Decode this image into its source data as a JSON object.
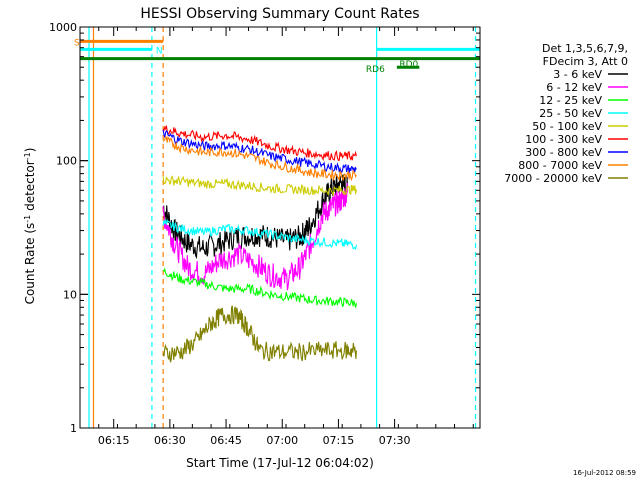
{
  "chart_data": {
    "type": "line",
    "title": "HESSI Observing Summary Count Rates",
    "xlabel": "Start Time (17-Jul-12 06:04:02)",
    "ylabel_prefix": "Count Rate (s",
    "ylabel_sup": "-1",
    "ylabel_mid": " detector",
    "ylabel_end": ")",
    "x_range_min": [
      6.1,
      7.88
    ],
    "y_scale": "log",
    "ylim": [
      1,
      1000
    ],
    "x_ticks": [
      {
        "min": 6.25,
        "label": "06:15"
      },
      {
        "min": 6.5,
        "label": "06:30"
      },
      {
        "min": 6.75,
        "label": "06:45"
      },
      {
        "min": 7.0,
        "label": "07:00"
      },
      {
        "min": 7.25,
        "label": "07:15"
      },
      {
        "min": 7.5,
        "label": "07:30"
      }
    ],
    "y_ticks": [
      {
        "v": 1,
        "label": "1"
      },
      {
        "v": 10,
        "label": "10"
      },
      {
        "v": 100,
        "label": "100"
      },
      {
        "v": 1000,
        "label": "1000"
      }
    ],
    "legend": {
      "placement": "right",
      "header1": "Det 1,3,5,6,7,9,",
      "header2": "FDecim 3, Att 0"
    },
    "series": [
      {
        "name": "3 - 6 keV",
        "color": "#000000",
        "points": [
          [
            6.47,
            45
          ],
          [
            6.52,
            30
          ],
          [
            6.58,
            24
          ],
          [
            6.65,
            22
          ],
          [
            6.72,
            24
          ],
          [
            6.8,
            27
          ],
          [
            6.88,
            28
          ],
          [
            6.95,
            27
          ],
          [
            7.02,
            25
          ],
          [
            7.08,
            27
          ],
          [
            7.12,
            32
          ],
          [
            7.18,
            50
          ],
          [
            7.22,
            62
          ],
          [
            7.26,
            68
          ],
          [
            7.29,
            62
          ]
        ]
      },
      {
        "name": "6 - 12 keV",
        "color": "#ff00ff",
        "points": [
          [
            6.47,
            40
          ],
          [
            6.52,
            24
          ],
          [
            6.58,
            16
          ],
          [
            6.65,
            14
          ],
          [
            6.72,
            18
          ],
          [
            6.8,
            20
          ],
          [
            6.88,
            17
          ],
          [
            6.95,
            14
          ],
          [
            7.02,
            13
          ],
          [
            7.08,
            16
          ],
          [
            7.13,
            24
          ],
          [
            7.18,
            40
          ],
          [
            7.22,
            45
          ],
          [
            7.26,
            50
          ],
          [
            7.29,
            58
          ]
        ]
      },
      {
        "name": "12 - 25 keV",
        "color": "#00ff00",
        "points": [
          [
            6.47,
            15
          ],
          [
            6.55,
            13
          ],
          [
            6.65,
            12
          ],
          [
            6.75,
            11
          ],
          [
            6.85,
            11
          ],
          [
            6.95,
            10
          ],
          [
            7.05,
            9.5
          ],
          [
            7.15,
            9
          ],
          [
            7.25,
            8.8
          ],
          [
            7.33,
            8.6
          ]
        ]
      },
      {
        "name": "25 - 50 keV",
        "color": "#00ffff",
        "points": [
          [
            6.47,
            34
          ],
          [
            6.55,
            31
          ],
          [
            6.65,
            29
          ],
          [
            6.75,
            31
          ],
          [
            6.85,
            30
          ],
          [
            6.95,
            28
          ],
          [
            7.05,
            26
          ],
          [
            7.15,
            25
          ],
          [
            7.25,
            24
          ],
          [
            7.33,
            23.5
          ]
        ]
      },
      {
        "name": "50 - 100 keV",
        "color": "#cccc00",
        "points": [
          [
            6.47,
            72
          ],
          [
            6.55,
            70
          ],
          [
            6.65,
            67
          ],
          [
            6.75,
            67
          ],
          [
            6.85,
            65
          ],
          [
            6.95,
            62
          ],
          [
            7.05,
            61
          ],
          [
            7.15,
            60
          ],
          [
            7.25,
            60
          ],
          [
            7.33,
            61
          ]
        ]
      },
      {
        "name": "100 - 300 keV",
        "color": "#ff0000",
        "points": [
          [
            6.47,
            175
          ],
          [
            6.55,
            160
          ],
          [
            6.65,
            150
          ],
          [
            6.75,
            155
          ],
          [
            6.85,
            145
          ],
          [
            6.95,
            128
          ],
          [
            7.05,
            118
          ],
          [
            7.15,
            112
          ],
          [
            7.25,
            108
          ],
          [
            7.33,
            108
          ]
        ]
      },
      {
        "name": "300 - 800 keV",
        "color": "#0000ff",
        "points": [
          [
            6.47,
            160
          ],
          [
            6.55,
            140
          ],
          [
            6.65,
            128
          ],
          [
            6.75,
            130
          ],
          [
            6.85,
            122
          ],
          [
            6.95,
            108
          ],
          [
            7.05,
            100
          ],
          [
            7.15,
            93
          ],
          [
            7.25,
            88
          ],
          [
            7.33,
            86
          ]
        ]
      },
      {
        "name": "800 - 7000 keV",
        "color": "#ff8000",
        "points": [
          [
            6.47,
            145
          ],
          [
            6.55,
            125
          ],
          [
            6.65,
            115
          ],
          [
            6.75,
            117
          ],
          [
            6.85,
            108
          ],
          [
            6.95,
            95
          ],
          [
            7.05,
            87
          ],
          [
            7.15,
            80
          ],
          [
            7.25,
            78
          ],
          [
            7.33,
            78
          ]
        ]
      },
      {
        "name": "7000 - 20000 keV",
        "color": "#808000",
        "points": [
          [
            6.47,
            3.6
          ],
          [
            6.55,
            3.7
          ],
          [
            6.62,
            4.5
          ],
          [
            6.68,
            6
          ],
          [
            6.73,
            7
          ],
          [
            6.8,
            7
          ],
          [
            6.85,
            5.5
          ],
          [
            6.9,
            3.8
          ],
          [
            6.98,
            3.7
          ],
          [
            7.08,
            3.7
          ],
          [
            7.18,
            3.8
          ],
          [
            7.28,
            3.8
          ],
          [
            7.33,
            3.8
          ]
        ]
      }
    ],
    "flags": [
      {
        "label": "S",
        "color": "#ff8000",
        "y": 780,
        "x0": 6.1,
        "x1": 6.47
      },
      {
        "label": "N",
        "color": "#00ffff",
        "y": 680,
        "x0": 6.1,
        "x1": 6.42
      },
      {
        "label": "",
        "color": "#00ffff",
        "y": 680,
        "x0": 7.42,
        "x1": 7.88
      },
      {
        "label": "",
        "color": "#008000",
        "y": 580,
        "x0": 6.1,
        "x1": 7.88
      },
      {
        "label": "RD6",
        "color": "#008000",
        "y": 500,
        "x0": 7.51,
        "x1": 7.61
      },
      {
        "label": "RD0",
        "color": "",
        "y": 540,
        "x0": 7.53,
        "x1": 7.53
      }
    ],
    "vlines": [
      {
        "x": 6.14,
        "color": "#00ffff",
        "dash": false
      },
      {
        "x": 6.16,
        "color": "#ff8000",
        "dash": false
      },
      {
        "x": 6.42,
        "color": "#00ffff",
        "dash": true
      },
      {
        "x": 6.47,
        "color": "#ff8000",
        "dash": true
      },
      {
        "x": 7.42,
        "color": "#00ffff",
        "dash": false
      },
      {
        "x": 7.86,
        "color": "#00ffff",
        "dash": true
      }
    ]
  },
  "footer_timestamp": "16-Jul-2012 08:59"
}
